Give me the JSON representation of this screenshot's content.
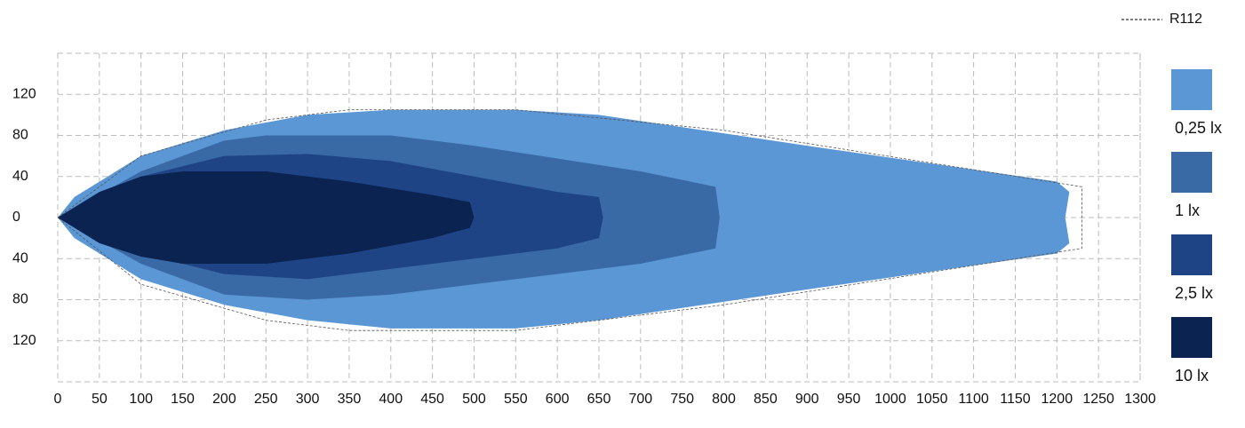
{
  "chart_data": {
    "type": "isolux",
    "xlim": [
      0,
      1300
    ],
    "ylim": [
      -160,
      160
    ],
    "xticks": [
      0,
      50,
      100,
      150,
      200,
      250,
      300,
      350,
      400,
      450,
      500,
      550,
      600,
      650,
      700,
      750,
      800,
      850,
      900,
      950,
      1000,
      1050,
      1100,
      1150,
      1200,
      1250,
      1300
    ],
    "yticks": [
      {
        "value": -120,
        "label": "120"
      },
      {
        "value": -80,
        "label": "80"
      },
      {
        "value": -40,
        "label": "40"
      },
      0,
      40,
      80,
      120
    ],
    "grid": true,
    "series": [
      {
        "name": "0,25 lx",
        "color": "#5b97d5",
        "x": [
          0,
          20,
          100,
          200,
          300,
          400,
          550,
          650,
          900,
          1200,
          1215,
          1210,
          1215,
          1200,
          900,
          650,
          550,
          400,
          300,
          200,
          100,
          20
        ],
        "y": [
          0,
          20,
          60,
          85,
          100,
          105,
          105,
          100,
          70,
          35,
          25,
          0,
          -25,
          -35,
          -70,
          -100,
          -108,
          -108,
          -100,
          -85,
          -60,
          -20
        ]
      },
      {
        "name": "1 lx",
        "color": "#3a6aa5",
        "x": [
          0,
          100,
          200,
          250,
          400,
          500,
          700,
          790,
          795,
          790,
          700,
          500,
          400,
          300,
          200,
          100
        ],
        "y": [
          0,
          45,
          75,
          80,
          80,
          70,
          45,
          30,
          0,
          -30,
          -45,
          -65,
          -75,
          -80,
          -75,
          -45
        ]
      },
      {
        "name": "2,5 lx",
        "color": "#1f4486",
        "x": [
          0,
          100,
          200,
          300,
          400,
          500,
          600,
          650,
          655,
          650,
          600,
          500,
          400,
          300,
          200,
          100
        ],
        "y": [
          0,
          40,
          60,
          62,
          55,
          40,
          25,
          20,
          0,
          -20,
          -30,
          -40,
          -50,
          -60,
          -55,
          -35
        ]
      },
      {
        "name": "10 lx",
        "color": "#0b2350",
        "x": [
          0,
          50,
          100,
          150,
          250,
          350,
          450,
          495,
          500,
          495,
          450,
          350,
          250,
          150,
          100,
          50
        ],
        "y": [
          0,
          25,
          40,
          45,
          45,
          35,
          22,
          15,
          0,
          -10,
          -20,
          -35,
          -45,
          -45,
          -38,
          -25
        ]
      },
      {
        "name": "R112",
        "color": "#555555",
        "line": "dashed",
        "x": [
          0,
          100,
          250,
          350,
          550,
          800,
          1230,
          1230,
          800,
          550,
          350,
          250,
          100
        ],
        "y": [
          0,
          60,
          95,
          105,
          105,
          85,
          30,
          -30,
          -85,
          -110,
          -110,
          -100,
          -65
        ]
      }
    ]
  }
}
